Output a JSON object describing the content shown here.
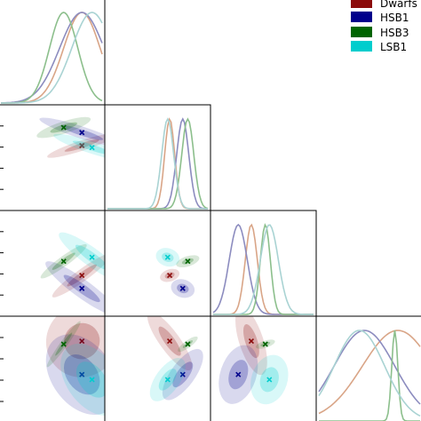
{
  "chart_data": {
    "type": "corner",
    "title": "",
    "legend": {
      "placement": "top-right",
      "entries": [
        {
          "label": "Dwarfs",
          "color": "#8b0a0a"
        },
        {
          "label": "HSB1",
          "color": "#00008b"
        },
        {
          "label": "HSB3",
          "color": "#006400"
        },
        {
          "label": "LSB1",
          "color": "#00cdcd"
        }
      ]
    },
    "grid": false,
    "n_params": 4,
    "axis_range": [
      0,
      1
    ],
    "series": [
      {
        "name": "Dwarfs",
        "color": "#8b0a0a",
        "line_color": "#d9a587",
        "marker": [
          0.8,
          0.62,
          0.38,
          0.78
        ],
        "spread": [
          0.18,
          0.05,
          0.06,
          0.35
        ]
      },
      {
        "name": "HSB1",
        "color": "#00008b",
        "line_color": "#8c8cbf",
        "marker": [
          0.8,
          0.75,
          0.25,
          0.45
        ],
        "spread": [
          0.22,
          0.06,
          0.09,
          0.3
        ]
      },
      {
        "name": "HSB3",
        "color": "#006400",
        "line_color": "#8cbf8c",
        "marker": [
          0.62,
          0.8,
          0.52,
          0.75
        ],
        "spread": [
          0.14,
          0.06,
          0.05,
          0.03
        ]
      },
      {
        "name": "LSB1",
        "color": "#00cdcd",
        "line_color": "#a9d3d3",
        "marker": [
          0.9,
          0.6,
          0.56,
          0.4
        ],
        "spread": [
          0.2,
          0.06,
          0.09,
          0.25
        ]
      }
    ]
  }
}
